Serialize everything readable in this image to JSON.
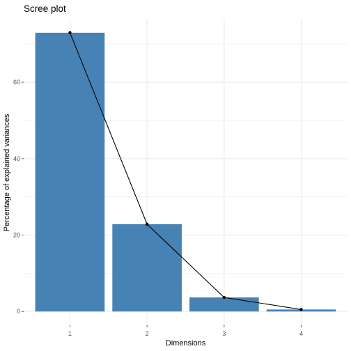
{
  "chart_data": {
    "type": "bar",
    "title": "Scree plot",
    "xlabel": "Dimensions",
    "ylabel": "Percentage of explained variances",
    "categories": [
      "1",
      "2",
      "3",
      "4"
    ],
    "values": [
      72.96,
      22.85,
      3.67,
      0.52
    ],
    "overlay": "line",
    "ylim": [
      -3.6,
      76.6
    ],
    "yticks": [
      0,
      20,
      40,
      60
    ],
    "grid": true,
    "legend": "none",
    "colors": {
      "bar": "#4682B4",
      "line": "#000000",
      "grid": "#ebebeb"
    }
  }
}
